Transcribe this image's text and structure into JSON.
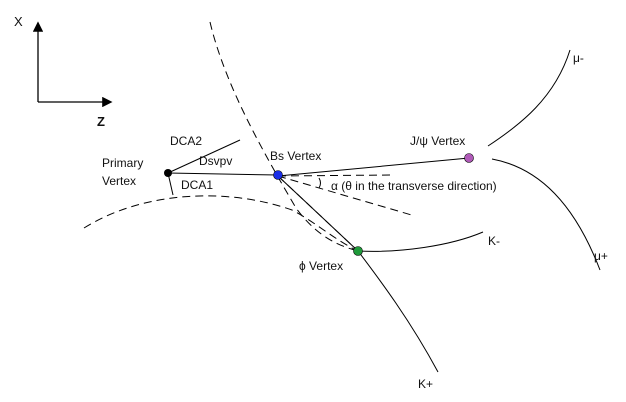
{
  "axes": {
    "x_label": "X",
    "z_label": "Z"
  },
  "labels": {
    "primary_vertex_line1": "Primary",
    "primary_vertex_line2": "Vertex",
    "dca2": "DCA2",
    "dca1": "DCA1",
    "dsvpv": "Dsvpv",
    "bs_vertex": "Bs Vertex",
    "jpsi_vertex": "J/ψ Vertex",
    "alpha": "α (θ in the transverse direction)",
    "phi_vertex": "ϕ Vertex",
    "mu_minus": "μ-",
    "mu_plus": "μ+",
    "k_minus": "K-",
    "k_plus": "K+"
  },
  "colors": {
    "primary_vertex": "#000000",
    "bs_vertex": "#1a2ee6",
    "jpsi_vertex": "#b05ab8",
    "phi_vertex": "#1f9a3a",
    "line": "#000000",
    "background": "#ffffff"
  }
}
